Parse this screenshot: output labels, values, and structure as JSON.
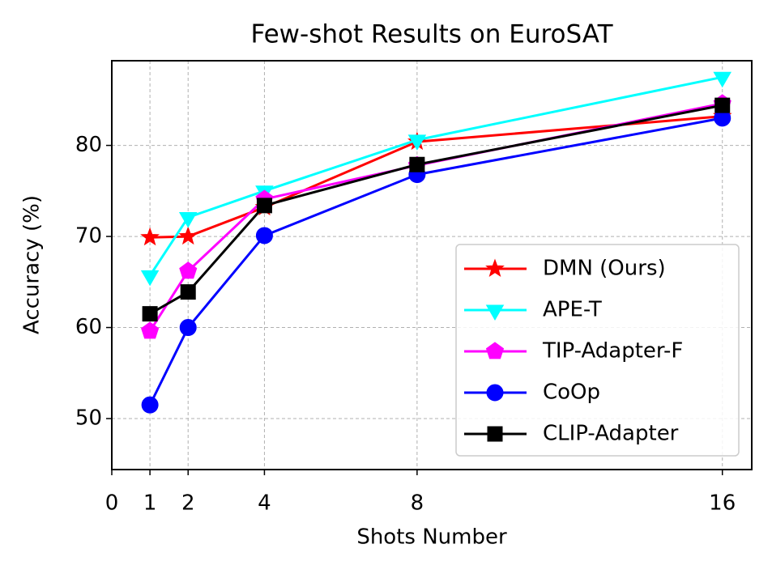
{
  "chart_data": {
    "type": "line",
    "title": "Few-shot Results on EuroSAT",
    "xlabel": "Shots Number",
    "ylabel": "Accuracy (%)",
    "x": [
      1,
      2,
      4,
      8,
      16
    ],
    "series": [
      {
        "name": "DMN (Ours)",
        "color": "#ff0000",
        "marker": "star",
        "values": [
          69.9,
          70.0,
          73.2,
          80.4,
          83.2
        ]
      },
      {
        "name": "APE-T",
        "color": "#00ffff",
        "marker": "triangle_down",
        "values": [
          65.7,
          72.1,
          75.0,
          80.6,
          87.5
        ]
      },
      {
        "name": "TIP-Adapter-F",
        "color": "#ff00ff",
        "marker": "pentagon",
        "values": [
          59.6,
          66.2,
          74.1,
          77.8,
          84.6
        ]
      },
      {
        "name": "CoOp",
        "color": "#0000ff",
        "marker": "circle",
        "values": [
          51.5,
          60.0,
          70.1,
          76.8,
          83.0
        ]
      },
      {
        "name": "CLIP-Adapter",
        "color": "#000000",
        "marker": "square",
        "values": [
          61.5,
          63.9,
          73.4,
          77.9,
          84.4
        ]
      }
    ],
    "xlim": [
      0,
      16.77
    ],
    "xticks": [
      0,
      1,
      2,
      4,
      8,
      16
    ],
    "ylim": [
      44.4,
      89.3
    ],
    "yticks": [
      50,
      60,
      70,
      80
    ],
    "grid": true,
    "legend": "lower right"
  }
}
